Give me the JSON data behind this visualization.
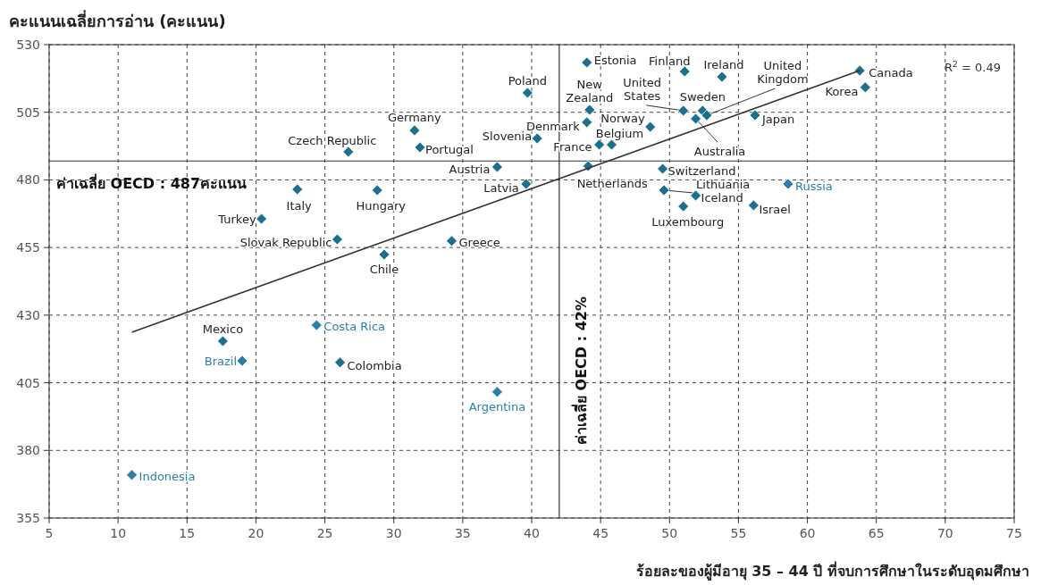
{
  "chart_data": {
    "type": "scatter",
    "title": "คะแนนเฉลี่ยการอ่าน  (คะแนน)",
    "xlabel": "ร้อยละของผู้มีอายุ 35 – 44 ปี ที่จบการศึกษาในระดับอุดมศึกษา",
    "xlim": [
      5,
      75
    ],
    "ylim": [
      355,
      530
    ],
    "xticks": [
      5,
      10,
      15,
      20,
      25,
      30,
      35,
      40,
      45,
      50,
      55,
      60,
      65,
      70,
      75
    ],
    "yticks": [
      355,
      380,
      405,
      430,
      455,
      480,
      505,
      530
    ],
    "grid": true,
    "marker": "diamond",
    "series": [
      {
        "color": "#1d6f8e",
        "x": [
          44.0,
          51.1,
          53.8,
          63.8,
          64.2,
          39.7,
          44.2,
          44.0,
          51.0,
          52.4,
          52.7,
          51.9,
          56.2,
          48.6,
          31.5,
          40.4,
          44.9,
          45.8,
          31.9,
          26.7,
          37.5,
          44.1,
          49.5,
          39.6,
          23.0,
          28.8,
          49.6,
          51.9,
          51.0,
          56.1,
          20.4,
          25.9,
          34.2,
          29.3,
          17.6,
          26.1
        ],
        "values": [
          523.4,
          520.1,
          518.1,
          520.4,
          514.2,
          512.2,
          505.9,
          501.3,
          505.6,
          505.6,
          503.9,
          502.6,
          503.9,
          499.6,
          498.3,
          495.3,
          493.0,
          493.0,
          492.0,
          490.4,
          484.8,
          485.1,
          484.1,
          478.5,
          476.5,
          476.2,
          476.2,
          474.2,
          470.2,
          470.6,
          465.6,
          458.0,
          457.4,
          452.4,
          420.4,
          412.5
        ],
        "value_labels": [
          "Estonia",
          "Finland",
          "Ireland",
          "Canada",
          "Korea",
          "Poland",
          "New Zealand",
          "Denmark",
          "United States",
          "Sweden",
          "United Kingdom",
          "Australia",
          "Japan",
          "Norway",
          "Germany",
          "Slovenia",
          "France",
          "Belgium",
          "Portugal",
          "Czech Republic",
          "Austria",
          "Netherlands",
          "Switzerland",
          "Latvia",
          "Italy",
          "Hungary",
          "Lithuania",
          "Iceland",
          "Luxembourg",
          "Israel",
          "Turkey",
          "Slovak Republic",
          "Greece",
          "Chile",
          "Mexico",
          "Colombia"
        ]
      },
      {
        "color": "#2a7fa8",
        "x": [
          58.6,
          24.4,
          19.0,
          37.5,
          11.0
        ],
        "values": [
          478.5,
          426.3,
          413.1,
          401.6,
          370.9
        ],
        "value_labels": [
          "Russia",
          "Costa Rica",
          "Brazil",
          "Argentina",
          "Indonesia"
        ]
      },
      {
        "type": "line",
        "marker": "none",
        "color": "#333333",
        "x": [
          11.0,
          63.8
        ],
        "values": [
          423.7,
          520.4
        ]
      }
    ],
    "ref_lines": [
      {
        "axis": "y",
        "value": 487,
        "label": "ค่าเฉลี่ย OECD : 487คะแนน",
        "color": "#333333"
      },
      {
        "axis": "x",
        "value": 42,
        "label": "ค่าเฉลี่ย OECD : 42%",
        "color": "#333333"
      }
    ],
    "annotations": [
      "R$^{2}$ = 0.49"
    ]
  }
}
